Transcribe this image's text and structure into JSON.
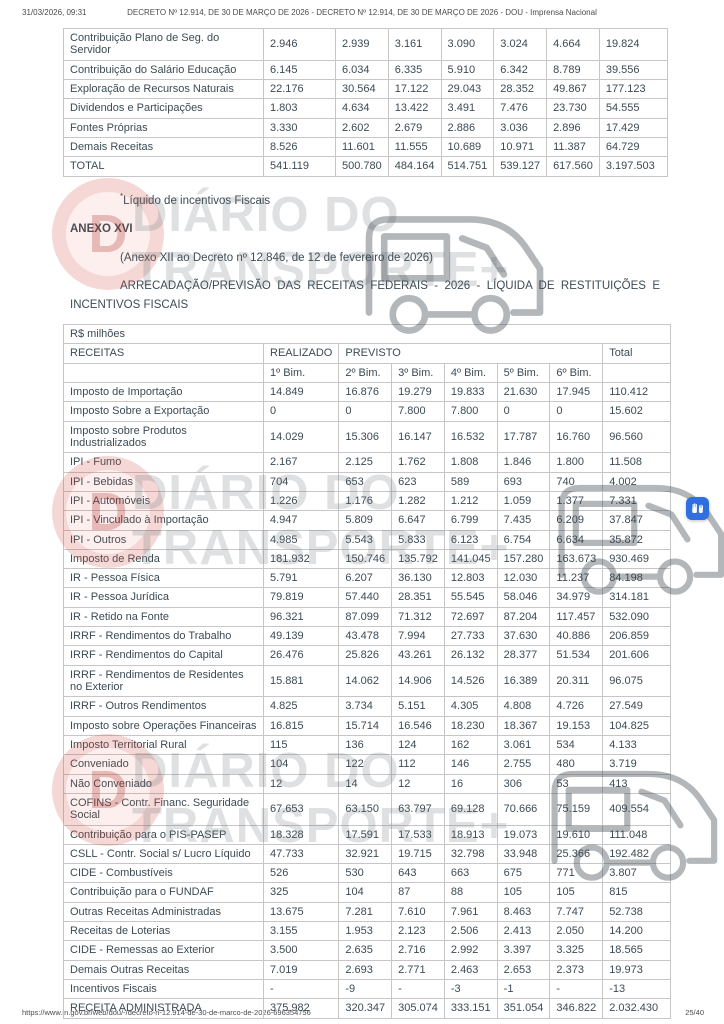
{
  "header": {
    "datetime": "31/03/2026, 09:31",
    "title": "DECRETO Nº 12.914, DE 30 DE MARÇO DE 2026 - DECRETO Nº 12.914, DE 30 DE MARÇO DE 2026 - DOU - Imprensa Nacional"
  },
  "footer": {
    "url": "https://www.in.gov.br/web/dou/-/decreto-n-12.914-de-30-de-marco-de-2026-696354756",
    "page_indicator": "25/40"
  },
  "table_top": {
    "rows": [
      {
        "label": "Contribuição Plano de Seg. do Servidor",
        "values": [
          "2.946",
          "2.939",
          "3.161",
          "3.090",
          "3.024",
          "4.664",
          "19.824"
        ]
      },
      {
        "label": "Contribuição do Salário Educação",
        "values": [
          "6.145",
          "6.034",
          "6.335",
          "5.910",
          "6.342",
          "8.789",
          "39.556"
        ]
      },
      {
        "label": "Exploração de Recursos Naturais",
        "values": [
          "22.176",
          "30.564",
          "17.122",
          "29.043",
          "28.352",
          "49.867",
          "177.123"
        ]
      },
      {
        "label": "Dividendos e Participações",
        "values": [
          "1.803",
          "4.634",
          "13.422",
          "3.491",
          "7.476",
          "23.730",
          "54.555"
        ]
      },
      {
        "label": "Fontes Próprias",
        "values": [
          "3.330",
          "2.602",
          "2.679",
          "2.886",
          "3.036",
          "2.896",
          "17.429"
        ]
      },
      {
        "label": "Demais Receitas",
        "values": [
          "8.526",
          "11.601",
          "11.555",
          "10.689",
          "10.971",
          "11.387",
          "64.729"
        ]
      },
      {
        "label": "TOTAL",
        "values": [
          "541.119",
          "500.780",
          "484.164",
          "514.751",
          "539.127",
          "617.560",
          "3.197.503"
        ]
      }
    ]
  },
  "body": {
    "footnote_marker": "*",
    "footnote_text": "Líquido de incentivos Fiscais",
    "anexo_title": "ANEXO XVI",
    "anexo_subtitle": "(Anexo XII ao Decreto nº 12.846, de 12 de fevereiro de 2026)",
    "section_heading": "ARRECADAÇÃO/PREVISÃO DAS RECEITAS FEDERAIS - 2026 - LÍQUIDA DE RESTITUIÇÕES E INCENTIVOS FISCAIS"
  },
  "table_main": {
    "caption": "R$ milhões",
    "headers": {
      "receitas": "RECEITAS",
      "realizado": "REALIZADO",
      "previsto": "PREVISTO",
      "total": "Total",
      "bims": [
        "1º Bim.",
        "2º Bim.",
        "3º Bim.",
        "4º Bim.",
        "5º Bim.",
        "6º Bim."
      ]
    },
    "rows": [
      {
        "label": "Imposto de Importação",
        "values": [
          "14.849",
          "16.876",
          "19.279",
          "19.833",
          "21.630",
          "17.945",
          "110.412"
        ]
      },
      {
        "label": "Imposto Sobre a Exportação",
        "values": [
          "0",
          "0",
          "7.800",
          "7.800",
          "0",
          "0",
          "15.602"
        ]
      },
      {
        "label": "Imposto sobre Produtos Industrializados",
        "values": [
          "14.029",
          "15.306",
          "16.147",
          "16.532",
          "17.787",
          "16.760",
          "96.560"
        ]
      },
      {
        "label": "IPI - Fumo",
        "values": [
          "2.167",
          "2.125",
          "1.762",
          "1.808",
          "1.846",
          "1.800",
          "11.508"
        ]
      },
      {
        "label": "IPI - Bebidas",
        "values": [
          "704",
          "653",
          "623",
          "589",
          "693",
          "740",
          "4.002"
        ]
      },
      {
        "label": "IPI - Automóveis",
        "values": [
          "1.226",
          "1.176",
          "1.282",
          "1.212",
          "1.059",
          "1.377",
          "7.331"
        ]
      },
      {
        "label": "IPI - Vinculado à Importação",
        "values": [
          "4.947",
          "5.809",
          "6.647",
          "6.799",
          "7.435",
          "6.209",
          "37.847"
        ]
      },
      {
        "label": "IPI - Outros",
        "values": [
          "4.985",
          "5.543",
          "5.833",
          "6.123",
          "6.754",
          "6.634",
          "35.872"
        ]
      },
      {
        "label": "Imposto de Renda",
        "values": [
          "181.932",
          "150.746",
          "135.792",
          "141.045",
          "157.280",
          "163.673",
          "930.469"
        ]
      },
      {
        "label": "IR - Pessoa Física",
        "values": [
          "5.791",
          "6.207",
          "36.130",
          "12.803",
          "12.030",
          "11.237",
          "84.198"
        ]
      },
      {
        "label": "IR - Pessoa Jurídica",
        "values": [
          "79.819",
          "57.440",
          "28.351",
          "55.545",
          "58.046",
          "34.979",
          "314.181"
        ]
      },
      {
        "label": "IR - Retido na Fonte",
        "values": [
          "96.321",
          "87.099",
          "71.312",
          "72.697",
          "87.204",
          "117.457",
          "532.090"
        ]
      },
      {
        "label": "IRRF - Rendimentos do Trabalho",
        "values": [
          "49.139",
          "43.478",
          "7.994",
          "27.733",
          "37.630",
          "40.886",
          "206.859"
        ]
      },
      {
        "label": "IRRF - Rendimentos do Capital",
        "values": [
          "26.476",
          "25.826",
          "43.261",
          "26.132",
          "28.377",
          "51.534",
          "201.606"
        ]
      },
      {
        "label": "IRRF - Rendimentos de Residentes no Exterior",
        "values": [
          "15.881",
          "14.062",
          "14.906",
          "14.526",
          "16.389",
          "20.311",
          "96.075"
        ]
      },
      {
        "label": "IRRF - Outros Rendimentos",
        "values": [
          "4.825",
          "3.734",
          "5.151",
          "4.305",
          "4.808",
          "4.726",
          "27.549"
        ]
      },
      {
        "label": "Imposto sobre Operações Financeiras",
        "values": [
          "16.815",
          "15.714",
          "16.546",
          "18.230",
          "18.367",
          "19.153",
          "104.825"
        ]
      },
      {
        "label": "Imposto Territorial Rural",
        "values": [
          "115",
          "136",
          "124",
          "162",
          "3.061",
          "534",
          "4.133"
        ]
      },
      {
        "label": "Conveniado",
        "values": [
          "104",
          "122",
          "112",
          "146",
          "2.755",
          "480",
          "3.719"
        ]
      },
      {
        "label": "Não Conveniado",
        "values": [
          "12",
          "14",
          "12",
          "16",
          "306",
          "53",
          "413"
        ]
      },
      {
        "label": "COFINS - Contr. Financ. Seguridade Social",
        "values": [
          "67.653",
          "63.150",
          "63.797",
          "69.128",
          "70.666",
          "75.159",
          "409.554"
        ]
      },
      {
        "label": "Contribuição para o PIS-PASEP",
        "values": [
          "18.328",
          "17.591",
          "17.533",
          "18.913",
          "19.073",
          "19.610",
          "111.048"
        ]
      },
      {
        "label": "CSLL - Contr. Social s/ Lucro Líquido",
        "values": [
          "47.733",
          "32.921",
          "19.715",
          "32.798",
          "33.948",
          "25.366",
          "192.482"
        ]
      },
      {
        "label": "CIDE - Combustíveis",
        "values": [
          "526",
          "530",
          "643",
          "663",
          "675",
          "771",
          "3.807"
        ]
      },
      {
        "label": "Contribuição para o FUNDAF",
        "values": [
          "325",
          "104",
          "87",
          "88",
          "105",
          "105",
          "815"
        ]
      },
      {
        "label": "Outras Receitas Administradas",
        "values": [
          "13.675",
          "7.281",
          "7.610",
          "7.961",
          "8.463",
          "7.747",
          "52.738"
        ]
      },
      {
        "label": "Receitas de Loterias",
        "values": [
          "3.155",
          "1.953",
          "2.123",
          "2.506",
          "2.413",
          "2.050",
          "14.200"
        ]
      },
      {
        "label": "CIDE - Remessas ao Exterior",
        "values": [
          "3.500",
          "2.635",
          "2.716",
          "2.992",
          "3.397",
          "3.325",
          "18.565"
        ]
      },
      {
        "label": "Demais Outras Receitas",
        "values": [
          "7.019",
          "2.693",
          "2.771",
          "2.463",
          "2.653",
          "2.373",
          "19.973"
        ]
      },
      {
        "label": "Incentivos Fiscais",
        "values": [
          "-",
          "-9",
          "-",
          "-3",
          "-1",
          "-",
          "-13"
        ]
      },
      {
        "label": "RECEITA ADMINISTRADA",
        "values": [
          "375.982",
          "320.347",
          "305.074",
          "333.151",
          "351.054",
          "346.822",
          "2.032.430"
        ]
      }
    ]
  },
  "watermark": {
    "logo_letter": "D",
    "line1": "DIÁRIO DO",
    "line2": "TRANSPORTE+"
  },
  "accessibility": {
    "button_color": "#2f6fe0"
  }
}
